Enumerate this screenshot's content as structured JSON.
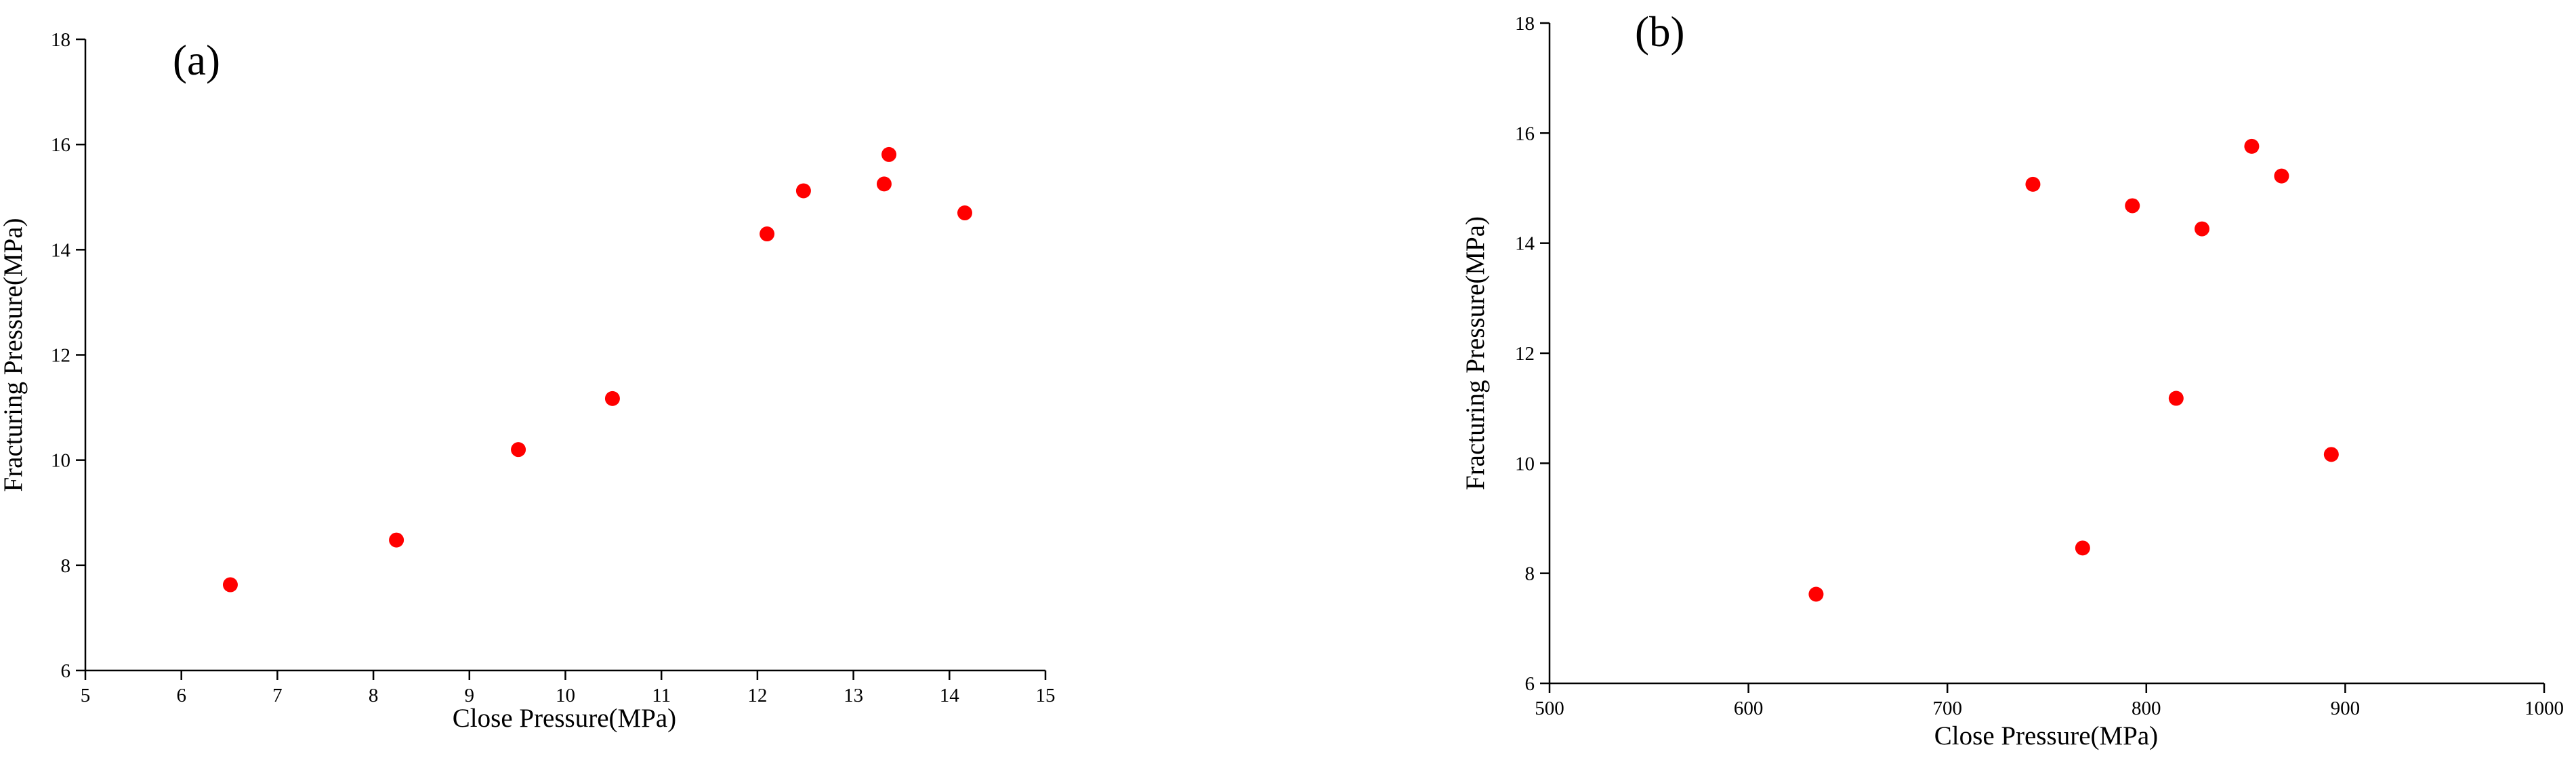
{
  "chart_data": [
    {
      "type": "scatter",
      "annotation": "(a)",
      "x_label": "Close Pressure(MPa)",
      "y_label": "Fracturing Pressure(MPa)",
      "color": "#ff0000",
      "x": [
        6.51,
        8.24,
        9.51,
        10.49,
        12.1,
        12.48,
        13.32,
        13.37,
        14.16
      ],
      "y": [
        7.63,
        8.48,
        10.2,
        11.17,
        14.3,
        15.12,
        15.25,
        15.81,
        14.7
      ],
      "xlim": [
        5,
        15
      ],
      "xticks": [
        5,
        6,
        7,
        8,
        9,
        10,
        11,
        12,
        13,
        14,
        15
      ],
      "ylim": [
        6,
        18
      ],
      "yticks": [
        6,
        8,
        10,
        12,
        14,
        16,
        18
      ]
    },
    {
      "type": "scatter",
      "annotation": "(b)",
      "x_label": "Close Pressure(MPa)",
      "y_label": "Fracturing Pressure(MPa)",
      "color": "#ff0000",
      "x": [
        634,
        743,
        768,
        793,
        815,
        828,
        853,
        868,
        893
      ],
      "y": [
        7.62,
        15.07,
        8.46,
        14.68,
        11.18,
        14.26,
        15.76,
        15.22,
        10.16
      ],
      "xlim": [
        500,
        1000
      ],
      "xticks": [
        500,
        600,
        700,
        800,
        900,
        1000
      ],
      "ylim": [
        6,
        18
      ],
      "yticks": [
        6,
        8,
        10,
        12,
        14,
        16,
        18
      ]
    }
  ]
}
